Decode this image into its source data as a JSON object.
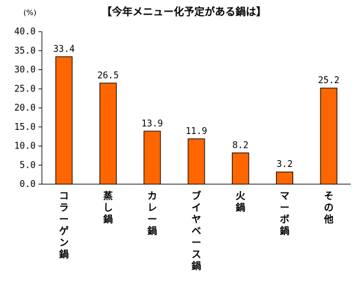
{
  "chart_data": {
    "type": "bar",
    "title": "【今年メニュー化予定がある鍋は】",
    "ylabel": "(%)",
    "xlabel": "",
    "categories": [
      "コラーゲン鍋",
      "蒸し鍋",
      "カレー鍋",
      "ブイヤベース鍋",
      "火鍋",
      "マーボ鍋",
      "その他"
    ],
    "values": [
      33.4,
      26.5,
      13.9,
      11.9,
      8.2,
      3.2,
      25.2
    ],
    "data_labels": [
      "33.4",
      "26.5",
      "13.9",
      "11.9",
      "8.2",
      "3.2",
      "25.2"
    ],
    "ylim": [
      0,
      40
    ],
    "yticks": [
      "0.0",
      "5.0",
      "10.0",
      "15.0",
      "20.0",
      "25.0",
      "30.0",
      "35.0",
      "40.0"
    ],
    "bar_color": "#ff6600",
    "bar_edge_color": "#000000",
    "grid": false,
    "legend": "none"
  }
}
